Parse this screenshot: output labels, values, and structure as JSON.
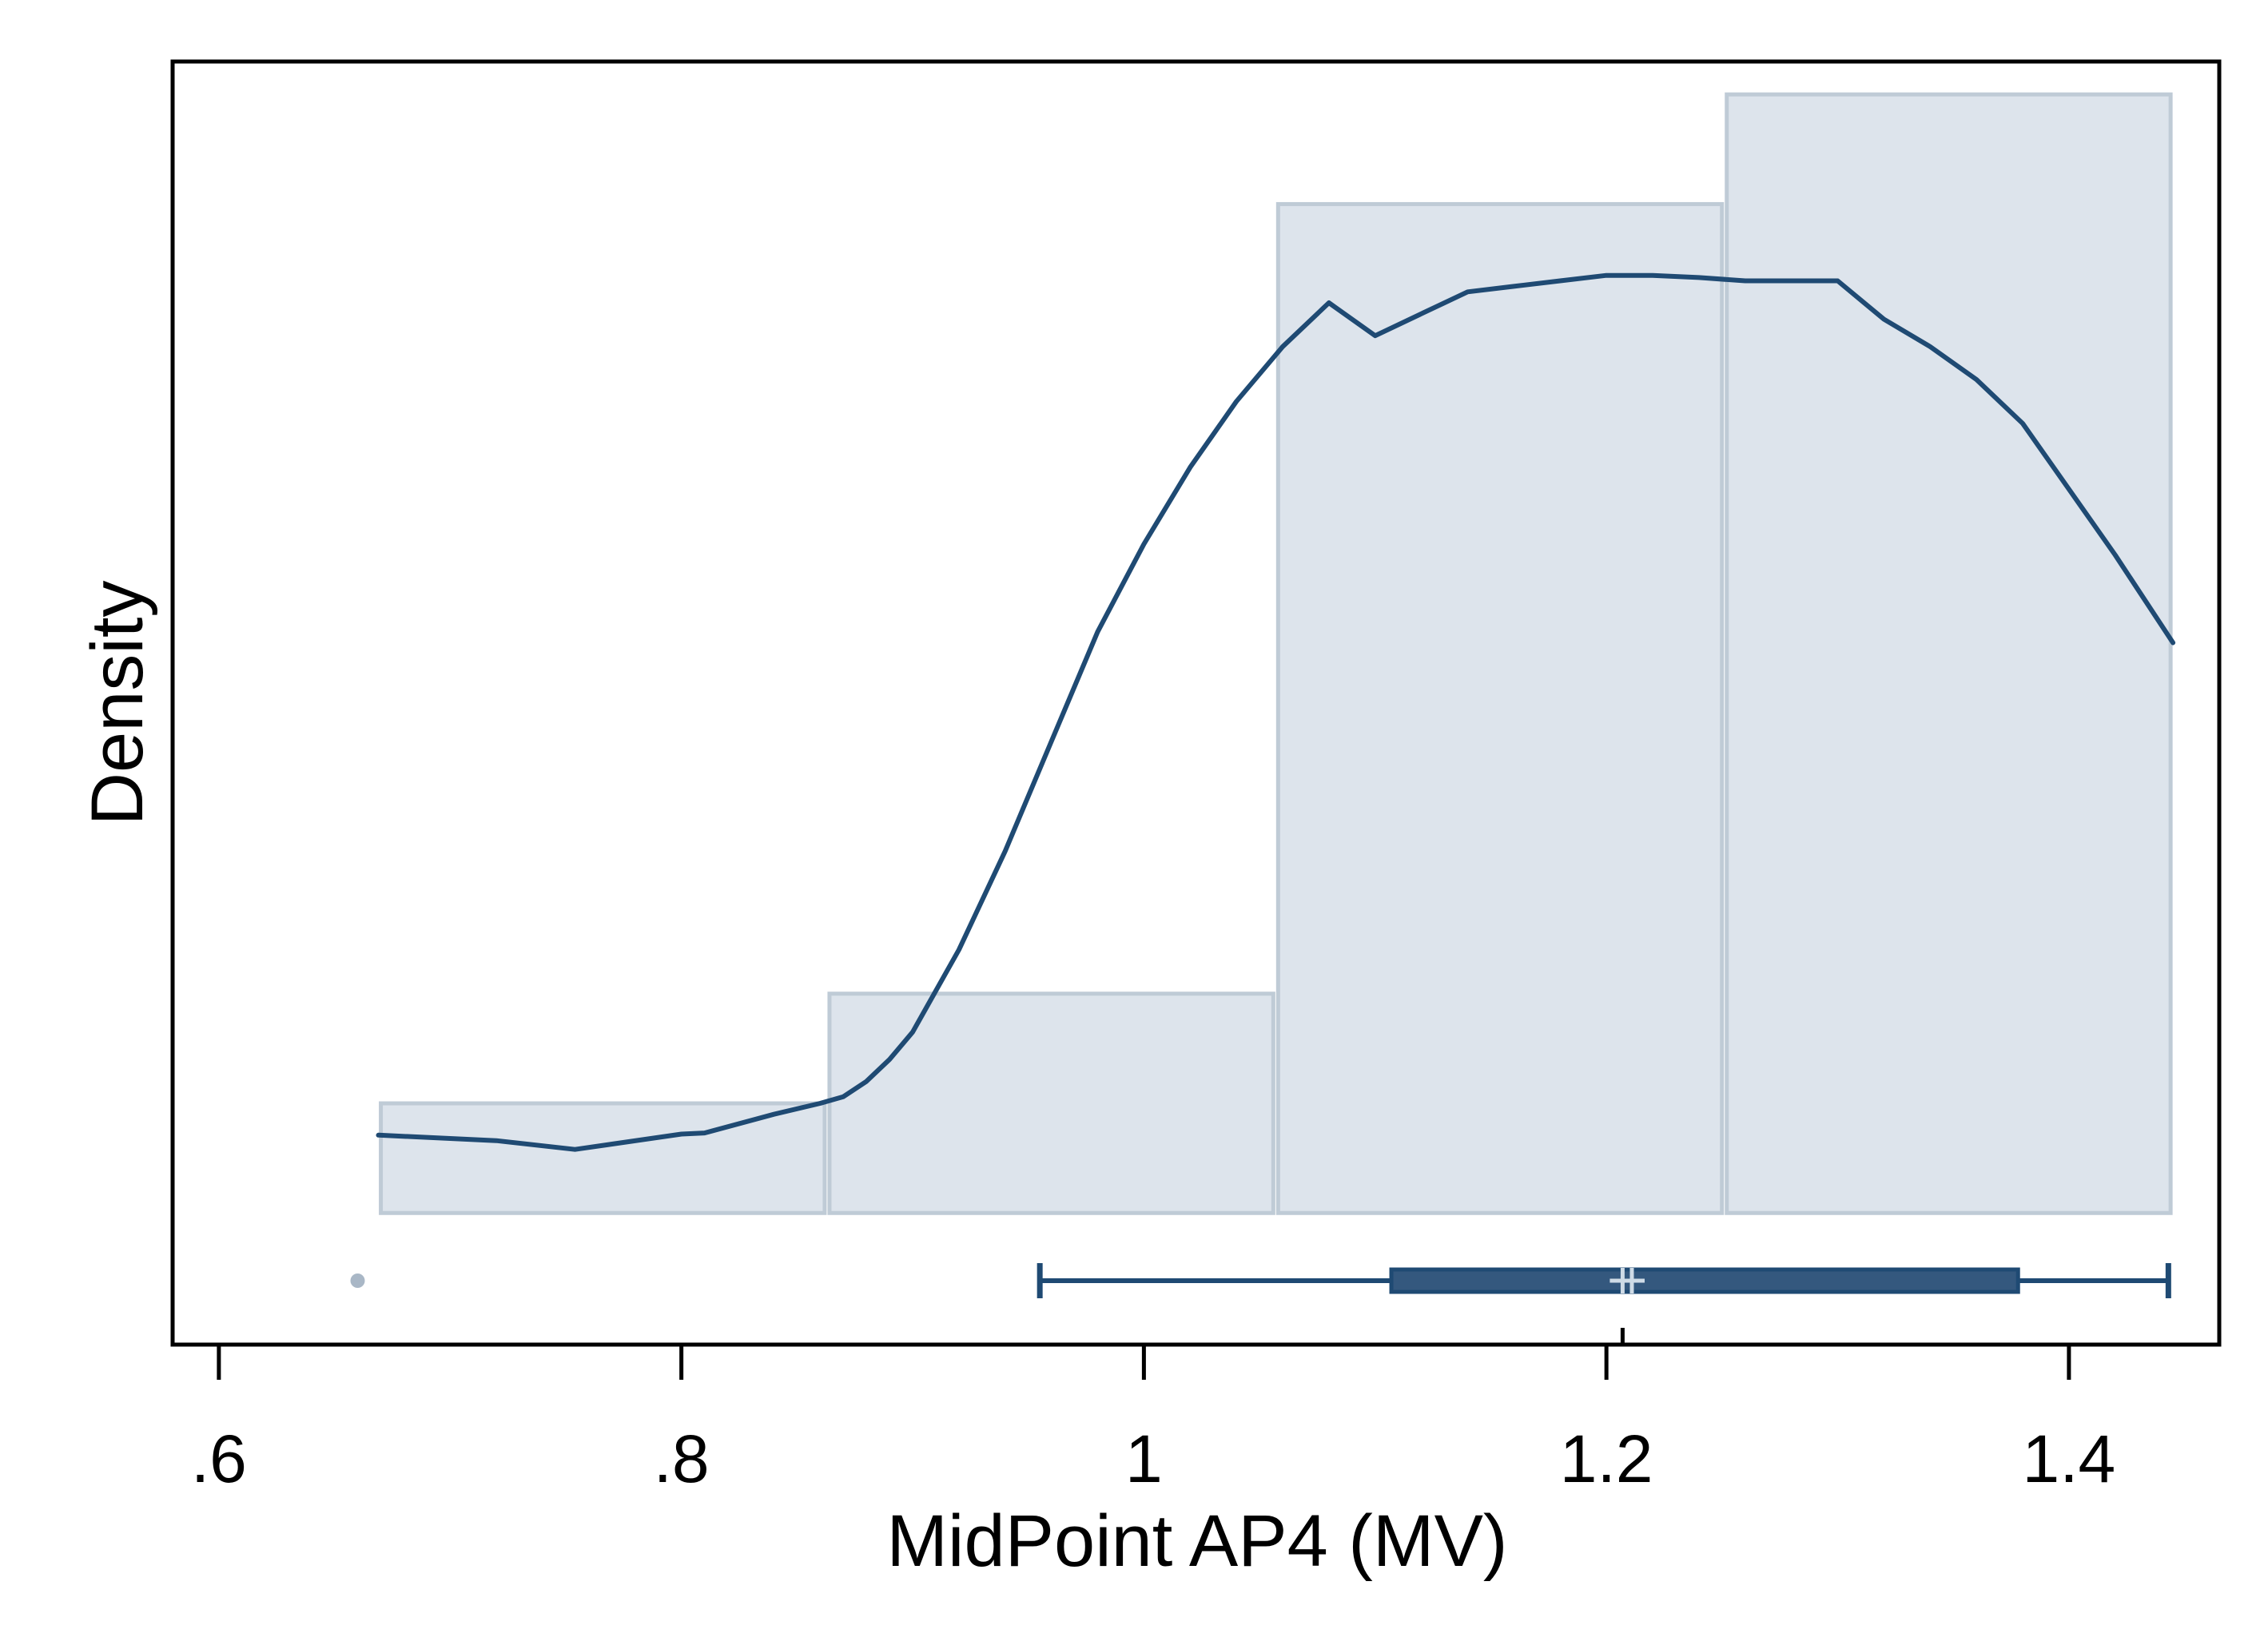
{
  "chart_data": {
    "type": "histogram",
    "xlabel": "MidPoint AP4 (MV)",
    "ylabel": "Density",
    "xlim": [
      0.58,
      1.465
    ],
    "ylim": [
      -0.12,
      1.05
    ],
    "x_ticks": [
      0.6,
      0.8,
      1.0,
      1.2,
      1.4
    ],
    "x_tick_labels": [
      ".6",
      ".8",
      "1",
      "1.2",
      "1.4"
    ],
    "y_ticks_shown": false,
    "grid": false,
    "legend": "none",
    "histogram_bins": [
      {
        "x0": 0.669,
        "x1": 0.863,
        "density": 0.1
      },
      {
        "x0": 0.863,
        "x1": 1.057,
        "density": 0.2
      },
      {
        "x0": 1.057,
        "x1": 1.251,
        "density": 0.92
      },
      {
        "x0": 1.251,
        "x1": 1.445,
        "density": 1.02
      }
    ],
    "kde": {
      "x": [
        0.669,
        0.72,
        0.754,
        0.8,
        0.81,
        0.84,
        0.86,
        0.87,
        0.88,
        0.89,
        0.9,
        0.92,
        0.94,
        0.96,
        0.98,
        1.0,
        1.02,
        1.04,
        1.06,
        1.08,
        1.1,
        1.12,
        1.14,
        1.16,
        1.18,
        1.2,
        1.22,
        1.24,
        1.26,
        1.28,
        1.3,
        1.32,
        1.34,
        1.36,
        1.38,
        1.4,
        1.42,
        1.445
      ],
      "y": [
        0.071,
        0.066,
        0.058,
        0.072,
        0.073,
        0.09,
        0.1,
        0.106,
        0.12,
        0.14,
        0.165,
        0.24,
        0.33,
        0.43,
        0.53,
        0.61,
        0.68,
        0.74,
        0.79,
        0.83,
        0.8,
        0.82,
        0.84,
        0.845,
        0.85,
        0.855,
        0.855,
        0.853,
        0.85,
        0.85,
        0.85,
        0.815,
        0.79,
        0.76,
        0.72,
        0.66,
        0.6,
        0.52
      ]
    },
    "boxplot": {
      "whisker_low": 0.955,
      "q1": 1.107,
      "median": 1.207,
      "mean": 1.211,
      "q3": 1.378,
      "whisker_high": 1.443,
      "outliers": [
        0.66
      ]
    },
    "colors": {
      "bar_fill": "#dde4ec",
      "bar_stroke": "#bfcbd6",
      "line": "#1f4a73",
      "box_fill": "#34587e",
      "outlier": "#a9b7c6",
      "marker": "#cfdbe6"
    }
  }
}
